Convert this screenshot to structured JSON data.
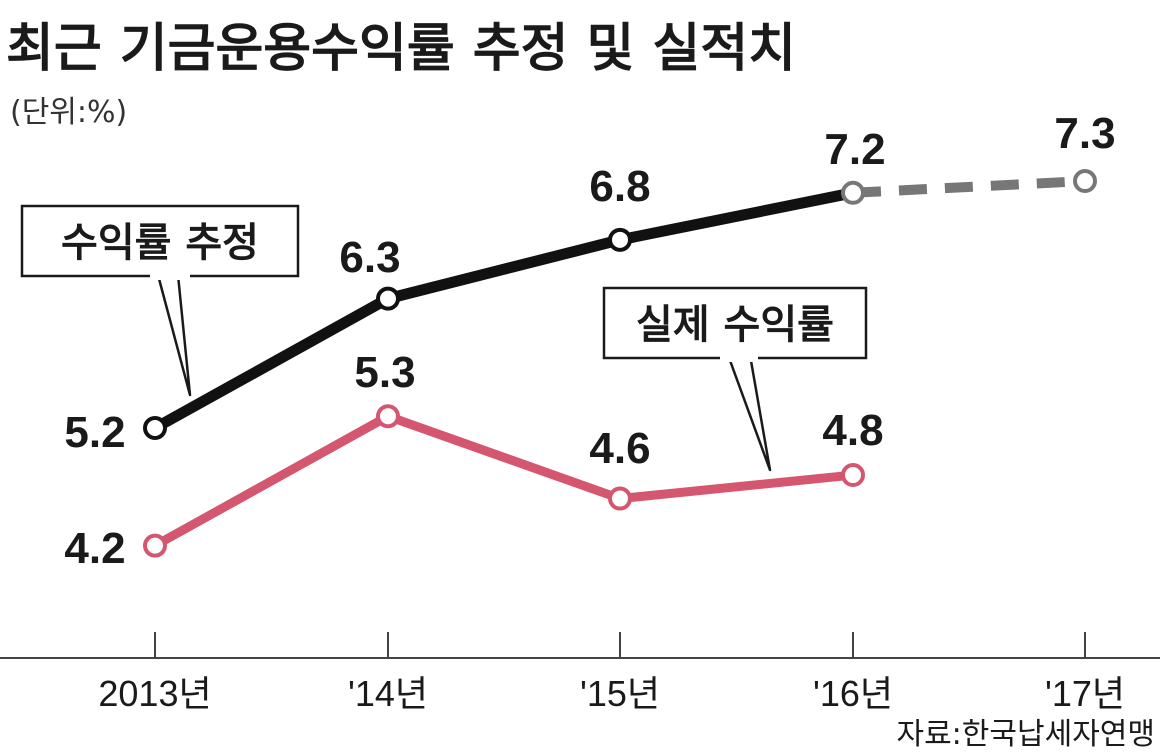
{
  "chart_data": {
    "type": "line",
    "title": "최근 기금운용수익률 추정 및 실적치",
    "unit_note": "(단위:%)",
    "categories": [
      "2013년",
      "'14년",
      "'15년",
      "'16년",
      "'17년"
    ],
    "series": [
      {
        "name": "수익률 추정",
        "values": [
          5.2,
          6.3,
          6.8,
          7.2,
          7.3
        ],
        "value_labels": [
          "5.2",
          "6.3",
          "6.8",
          "7.2",
          "7.3"
        ],
        "projected_from_index": 3,
        "color": "#111111",
        "projected_color": "#777777"
      },
      {
        "name": "실제 수익률",
        "values": [
          4.2,
          5.3,
          4.6,
          4.8,
          null
        ],
        "value_labels": [
          "4.2",
          "5.3",
          "4.6",
          "4.8"
        ],
        "color": "#d4566f"
      }
    ],
    "grid": false,
    "legend": "callout labels",
    "source": "자료:한국납세자연맹"
  }
}
